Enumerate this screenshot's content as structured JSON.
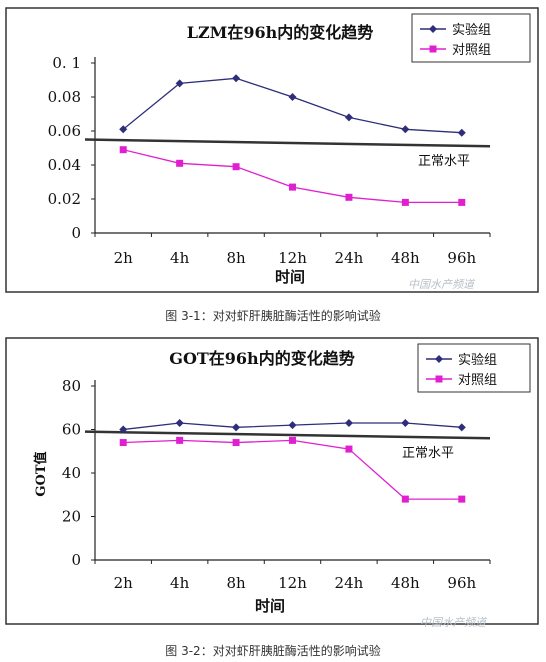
{
  "colors": {
    "experiment": "#2e2e7a",
    "control": "#e020d0",
    "normal": "#333333",
    "frame": "#333333"
  },
  "chart_data": [
    {
      "type": "line",
      "title": "LZM在96h内的变化趋势",
      "xlabel": "时间",
      "ylabel": "",
      "categories": [
        "2h",
        "4h",
        "8h",
        "12h",
        "24h",
        "48h",
        "96h"
      ],
      "ylim": [
        0,
        0.1
      ],
      "yticks": [
        "0",
        "0.02",
        "0.04",
        "0.06",
        "0.08",
        "0. 1"
      ],
      "series": [
        {
          "name": "实验组",
          "values": [
            0.061,
            0.088,
            0.091,
            0.08,
            0.068,
            0.061,
            0.059
          ]
        },
        {
          "name": "对照组",
          "values": [
            0.049,
            0.041,
            0.039,
            0.027,
            0.021,
            0.018,
            0.018
          ]
        }
      ],
      "normal_line": {
        "label": "正常水平",
        "from": 0.055,
        "to": 0.051
      },
      "legend": "top-right",
      "grid": false
    },
    {
      "type": "line",
      "title": "GOT在96h内的变化趋势",
      "xlabel": "时间",
      "ylabel": "GOT值",
      "categories": [
        "2h",
        "4h",
        "8h",
        "12h",
        "24h",
        "48h",
        "96h"
      ],
      "ylim": [
        0,
        80
      ],
      "yticks": [
        "0",
        "20",
        "40",
        "60",
        "80"
      ],
      "series": [
        {
          "name": "实验组",
          "values": [
            60,
            63,
            61,
            62,
            63,
            63,
            61
          ]
        },
        {
          "name": "对照组",
          "values": [
            54,
            55,
            54,
            55,
            51,
            28,
            28
          ]
        }
      ],
      "normal_line": {
        "label": "正常水平",
        "from": 59,
        "to": 56
      },
      "legend": "top-right",
      "grid": false
    }
  ],
  "captions": [
    "图 3-1：对对虾肝胰脏酶活性的影响试验",
    "图 3-2：对对虾肝胰脏酶活性的影响试验"
  ],
  "watermark": "中国水产频道"
}
